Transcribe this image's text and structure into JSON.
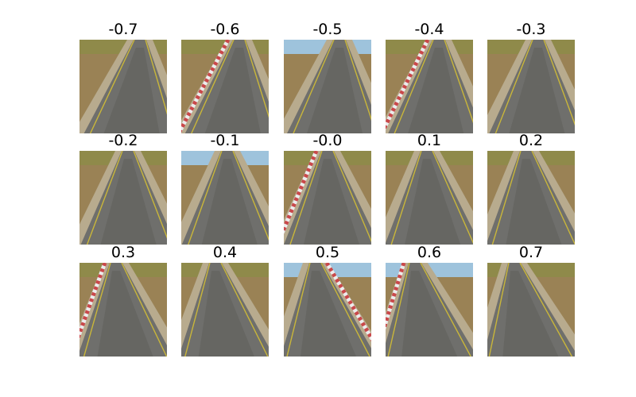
{
  "figure": {
    "panels": [
      {
        "title": "-0.7",
        "curve": -0.7,
        "left_kerb": false,
        "right_kerb": false,
        "sky": false
      },
      {
        "title": "-0.6",
        "curve": -0.6,
        "left_kerb": true,
        "right_kerb": false,
        "sky": false
      },
      {
        "title": "-0.5",
        "curve": -0.5,
        "left_kerb": false,
        "right_kerb": false,
        "sky": true
      },
      {
        "title": "-0.4",
        "curve": -0.4,
        "left_kerb": true,
        "right_kerb": false,
        "sky": false
      },
      {
        "title": "-0.3",
        "curve": -0.3,
        "left_kerb": false,
        "right_kerb": false,
        "sky": false
      },
      {
        "title": "-0.2",
        "curve": -0.2,
        "left_kerb": false,
        "right_kerb": false,
        "sky": false
      },
      {
        "title": "-0.1",
        "curve": -0.1,
        "left_kerb": false,
        "right_kerb": false,
        "sky": true
      },
      {
        "title": "-0.0",
        "curve": 0.0,
        "left_kerb": true,
        "right_kerb": false,
        "sky": false
      },
      {
        "title": "0.1",
        "curve": 0.1,
        "left_kerb": false,
        "right_kerb": false,
        "sky": false
      },
      {
        "title": "0.2",
        "curve": 0.2,
        "left_kerb": false,
        "right_kerb": false,
        "sky": false
      },
      {
        "title": "0.3",
        "curve": 0.3,
        "left_kerb": true,
        "right_kerb": false,
        "sky": false
      },
      {
        "title": "0.4",
        "curve": 0.4,
        "left_kerb": false,
        "right_kerb": false,
        "sky": false
      },
      {
        "title": "0.5",
        "curve": 0.5,
        "left_kerb": false,
        "right_kerb": true,
        "sky": true
      },
      {
        "title": "0.6",
        "curve": 0.6,
        "left_kerb": true,
        "right_kerb": false,
        "sky": true
      },
      {
        "title": "0.7",
        "curve": 0.7,
        "left_kerb": false,
        "right_kerb": false,
        "sky": false
      }
    ]
  },
  "colors": {
    "asphalt": "#6f6f6c",
    "asphalt_dark": "#55554f",
    "shoulder": "#b8ab8e",
    "dirt": "#9a8255",
    "grass": "#8f8a4a",
    "sky": "#9ec3dc",
    "lane_line": "#c9b63a",
    "kerb_red": "#c9484a",
    "kerb_white": "#ececec"
  }
}
